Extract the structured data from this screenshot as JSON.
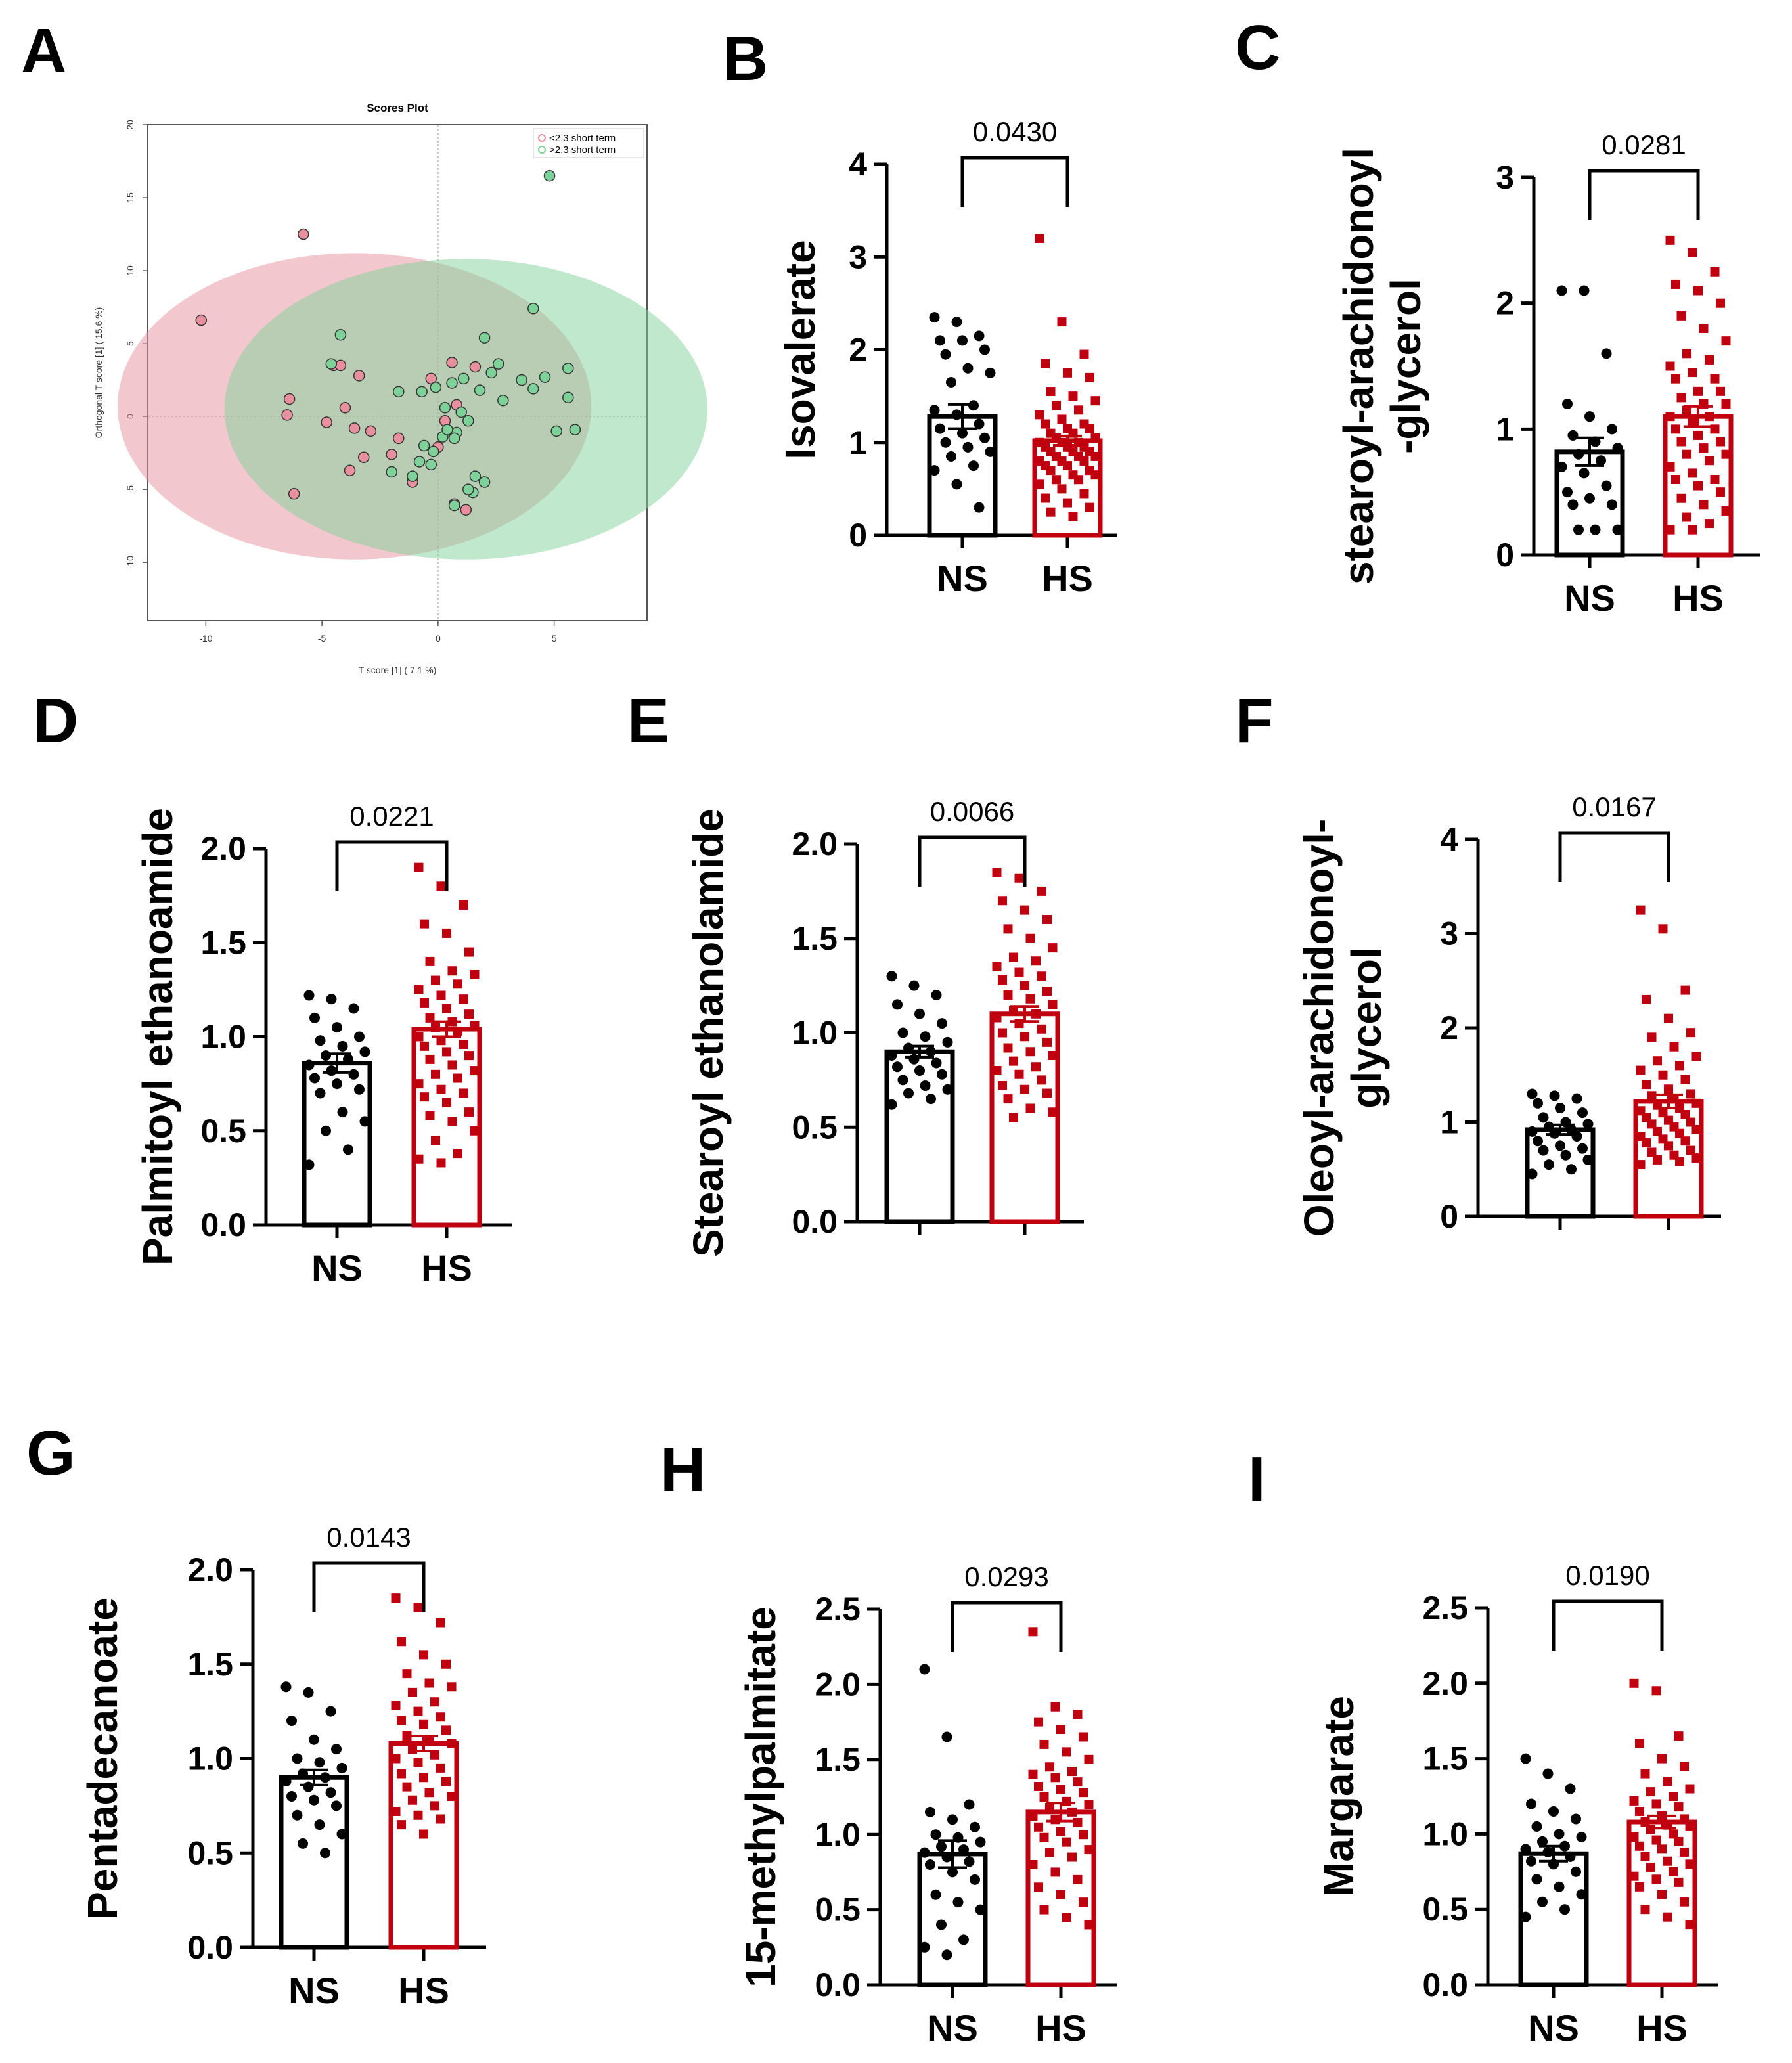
{
  "chart_data": [
    {
      "id": "A",
      "type": "scatter",
      "panel_label": "A",
      "title": "Scores Plot",
      "xlabel": "T score [1] ( 7.1 %)",
      "ylabel": "Orthogonal T score [1] ( 15.6 %)",
      "xlim": [
        -12.5,
        9
      ],
      "ylim": [
        -14,
        20
      ],
      "xticks": [
        -10,
        -5,
        0,
        5
      ],
      "xticklabels": [
        "-10",
        "-5",
        "0",
        "5"
      ],
      "yticks": [
        -10,
        -5,
        0,
        5,
        10,
        15,
        20
      ],
      "yticklabels": [
        "-10",
        "-5",
        "0",
        "5",
        "10",
        "15",
        "20"
      ],
      "legend": [
        "<2.3 short term",
        ">2.3 short term"
      ],
      "legend_position": "top-right",
      "colors": [
        "#e8909e",
        "#7fd19a"
      ],
      "ellipses": [
        {
          "name": "<2.3 short term",
          "cx": -3.6,
          "cy": 0.7,
          "rx": 10.2,
          "ry": 10.5
        },
        {
          "name": ">2.3 short term",
          "cx": 1.2,
          "cy": 0.5,
          "rx": 10.4,
          "ry": 10.3
        }
      ],
      "series": [
        {
          "name": "<2.3 short term",
          "x": [
            -5.8,
            -10.2,
            -6.4,
            -6.5,
            -6.2,
            -4.5,
            -4.2,
            -4.8,
            -4.0,
            -3.6,
            -3.4,
            -3.8,
            -2.9,
            -3.2,
            -2.0,
            -1.1,
            -1.7,
            0.6,
            0.3,
            0.0,
            0.8,
            -0.3,
            1.6,
            0.7,
            1.2
          ],
          "y": [
            12.5,
            6.6,
            1.2,
            0.1,
            -5.3,
            3.5,
            3.5,
            -0.4,
            0.6,
            -0.8,
            2.8,
            -3.7,
            -1.0,
            -2.8,
            -2.6,
            -4.5,
            -1.5,
            3.7,
            -0.3,
            -2.1,
            0.8,
            2.6,
            3.4,
            -6.0,
            -6.4
          ]
        },
        {
          "name": ">2.3 short term",
          "x": [
            4.8,
            4.1,
            2.0,
            2.6,
            5.6,
            4.6,
            3.6,
            4.1,
            5.6,
            5.1,
            5.9,
            -4.2,
            -4.6,
            -1.7,
            -0.7,
            -0.1,
            0.6,
            1.1,
            1.8,
            2.3,
            2.8,
            0.3,
            1.0,
            1.3,
            0.8,
            0.2,
            0.4,
            0.7,
            -0.2,
            -0.6,
            -0.8,
            -2.0,
            -1.1,
            -0.3,
            1.6,
            2.0,
            1.5,
            0.7,
            1.3
          ],
          "y": [
            16.5,
            7.4,
            5.4,
            3.6,
            3.3,
            2.7,
            2.5,
            1.9,
            1.3,
            -1.0,
            -0.9,
            5.6,
            3.6,
            1.7,
            1.7,
            2.0,
            2.3,
            2.6,
            1.8,
            3.0,
            1.1,
            0.6,
            0.3,
            -0.3,
            -1.1,
            -1.4,
            -0.9,
            -1.5,
            -2.4,
            -2.0,
            -3.1,
            -3.8,
            -4.1,
            -3.3,
            -4.1,
            -4.5,
            -5.2,
            -6.1,
            -5.0
          ]
        }
      ]
    },
    {
      "id": "B",
      "type": "bar",
      "panel_label": "B",
      "ylabel": "Isovalerate",
      "categories": [
        "NS",
        "HS"
      ],
      "means": [
        1.28,
        1.02
      ],
      "sem": [
        0.13,
        0.05
      ],
      "ylim": [
        0,
        4
      ],
      "yticks": [
        0,
        1,
        2,
        3,
        4
      ],
      "yticklabels": [
        "0",
        "1",
        "2",
        "3",
        "4"
      ],
      "pvalue": "0.0430",
      "points": [
        [
          2.35,
          2.3,
          2.15,
          2.1,
          2.1,
          2.0,
          1.95,
          1.8,
          1.75,
          1.65,
          1.4,
          1.35,
          1.3,
          1.2,
          1.15,
          1.1,
          1.05,
          1.0,
          0.95,
          0.9,
          0.85,
          0.75,
          0.7,
          0.55,
          0.3
        ],
        [
          3.2,
          2.3,
          1.95,
          1.85,
          1.75,
          1.7,
          1.55,
          1.5,
          1.45,
          1.4,
          1.35,
          1.3,
          1.25,
          1.2,
          1.2,
          1.15,
          1.15,
          1.1,
          1.1,
          1.05,
          1.05,
          1.0,
          1.0,
          1.0,
          0.95,
          0.95,
          0.95,
          0.9,
          0.9,
          0.9,
          0.85,
          0.85,
          0.85,
          0.8,
          0.8,
          0.8,
          0.75,
          0.75,
          0.7,
          0.7,
          0.65,
          0.65,
          0.6,
          0.6,
          0.55,
          0.5,
          0.45,
          0.4,
          0.35,
          0.3,
          0.25,
          0.2
        ]
      ]
    },
    {
      "id": "C",
      "type": "bar",
      "panel_label": "C",
      "ylabel": "stearoyl-arachidonoyl -glycerol",
      "ylabel_lines": [
        "stearoyl-arachidonoyl",
        "-glycerol"
      ],
      "categories": [
        "NS",
        "HS"
      ],
      "means": [
        0.82,
        1.1
      ],
      "sem": [
        0.11,
        0.08
      ],
      "ylim": [
        0,
        3
      ],
      "yticks": [
        0,
        1,
        2,
        3
      ],
      "yticklabels": [
        "0",
        "1",
        "2",
        "3"
      ],
      "pvalue": "0.0281",
      "points": [
        [
          2.1,
          2.1,
          1.6,
          1.2,
          1.1,
          1.0,
          0.95,
          0.9,
          0.85,
          0.8,
          0.75,
          0.7,
          0.65,
          0.55,
          0.5,
          0.45,
          0.4,
          0.4,
          0.2,
          0.2,
          0.2
        ],
        [
          2.5,
          2.4,
          2.25,
          2.15,
          2.1,
          2.0,
          1.9,
          1.8,
          1.7,
          1.6,
          1.55,
          1.5,
          1.45,
          1.4,
          1.4,
          1.3,
          1.3,
          1.25,
          1.2,
          1.2,
          1.15,
          1.1,
          1.1,
          1.05,
          1.0,
          1.0,
          0.95,
          0.9,
          0.9,
          0.85,
          0.8,
          0.8,
          0.75,
          0.7,
          0.65,
          0.6,
          0.6,
          0.55,
          0.5,
          0.45,
          0.4,
          0.35,
          0.3,
          0.25,
          0.2,
          0.2
        ]
      ]
    },
    {
      "id": "D",
      "type": "bar",
      "panel_label": "D",
      "ylabel": "Palmitoyl ethanoamide",
      "categories": [
        "NS",
        "HS"
      ],
      "means": [
        0.86,
        1.04
      ],
      "sem": [
        0.05,
        0.04
      ],
      "ylim": [
        0,
        2.0
      ],
      "yticks": [
        0,
        0.5,
        1.0,
        1.5,
        2.0
      ],
      "yticklabels": [
        "0.0",
        "0.5",
        "1.0",
        "1.5",
        "2.0"
      ],
      "pvalue": "0.0221",
      "points": [
        [
          1.22,
          1.2,
          1.15,
          1.1,
          1.05,
          1.0,
          0.98,
          0.95,
          0.92,
          0.9,
          0.88,
          0.85,
          0.82,
          0.8,
          0.78,
          0.75,
          0.72,
          0.7,
          0.6,
          0.55,
          0.5,
          0.4,
          0.32
        ],
        [
          1.9,
          1.8,
          1.7,
          1.6,
          1.55,
          1.45,
          1.4,
          1.35,
          1.33,
          1.3,
          1.28,
          1.25,
          1.22,
          1.2,
          1.18,
          1.15,
          1.12,
          1.1,
          1.08,
          1.06,
          1.05,
          1.03,
          1.0,
          0.98,
          0.96,
          0.95,
          0.92,
          0.9,
          0.88,
          0.85,
          0.82,
          0.8,
          0.78,
          0.75,
          0.72,
          0.7,
          0.68,
          0.65,
          0.6,
          0.58,
          0.55,
          0.5,
          0.45,
          0.38,
          0.35,
          0.33
        ]
      ]
    },
    {
      "id": "E",
      "type": "bar",
      "panel_label": "E",
      "ylabel": "Stearoyl ethanolamide",
      "categories": [
        "",
        ""
      ],
      "means": [
        0.9,
        1.1
      ],
      "sem": [
        0.03,
        0.04
      ],
      "ylim": [
        0,
        2.0
      ],
      "yticks": [
        0,
        0.5,
        1.0,
        1.5,
        2.0
      ],
      "yticklabels": [
        "0.0",
        "0.5",
        "1.0",
        "1.5",
        "2.0"
      ],
      "pvalue": "0.0066",
      "points": [
        [
          1.3,
          1.25,
          1.2,
          1.15,
          1.1,
          1.05,
          1.0,
          0.98,
          0.95,
          0.92,
          0.9,
          0.88,
          0.86,
          0.84,
          0.82,
          0.8,
          0.78,
          0.75,
          0.72,
          0.7,
          0.68,
          0.65,
          0.62
        ],
        [
          1.85,
          1.82,
          1.75,
          1.7,
          1.65,
          1.6,
          1.55,
          1.5,
          1.45,
          1.4,
          1.38,
          1.35,
          1.32,
          1.3,
          1.28,
          1.25,
          1.22,
          1.2,
          1.18,
          1.15,
          1.12,
          1.1,
          1.08,
          1.05,
          1.02,
          1.0,
          0.98,
          0.95,
          0.92,
          0.9,
          0.88,
          0.85,
          0.82,
          0.8,
          0.78,
          0.75,
          0.72,
          0.7,
          0.68,
          0.65,
          0.6,
          0.58,
          0.55
        ]
      ]
    },
    {
      "id": "F",
      "type": "bar",
      "panel_label": "F",
      "ylabel": "Oleoyl-arachidonoyl- glycerol",
      "ylabel_lines": [
        "Oleoyl-arachidonoyl-",
        "glycerol"
      ],
      "categories": [
        "",
        ""
      ],
      "means": [
        0.92,
        1.22
      ],
      "sem": [
        0.05,
        0.07
      ],
      "ylim": [
        0,
        4
      ],
      "yticks": [
        0,
        1,
        2,
        3,
        4
      ],
      "yticklabels": [
        "0",
        "1",
        "2",
        "3",
        "4"
      ],
      "pvalue": "0.0167",
      "points": [
        [
          1.3,
          1.28,
          1.25,
          1.2,
          1.15,
          1.1,
          1.05,
          1.0,
          0.98,
          0.95,
          0.92,
          0.9,
          0.88,
          0.85,
          0.8,
          0.75,
          0.72,
          0.7,
          0.65,
          0.6,
          0.55,
          0.5,
          0.45
        ],
        [
          3.25,
          3.05,
          2.4,
          2.3,
          2.1,
          1.95,
          1.9,
          1.8,
          1.7,
          1.65,
          1.6,
          1.55,
          1.5,
          1.45,
          1.4,
          1.35,
          1.3,
          1.28,
          1.25,
          1.2,
          1.18,
          1.15,
          1.12,
          1.1,
          1.08,
          1.05,
          1.02,
          1.0,
          0.98,
          0.95,
          0.92,
          0.9,
          0.88,
          0.85,
          0.82,
          0.8,
          0.78,
          0.75,
          0.7,
          0.68,
          0.65,
          0.62,
          0.6,
          0.58,
          0.55
        ]
      ]
    },
    {
      "id": "G",
      "type": "bar",
      "panel_label": "G",
      "ylabel": "Pentadecanoate",
      "categories": [
        "NS",
        "HS"
      ],
      "means": [
        0.9,
        1.08
      ],
      "sem": [
        0.04,
        0.04
      ],
      "ylim": [
        0,
        2.0
      ],
      "yticks": [
        0,
        0.5,
        1.0,
        1.5,
        2.0
      ],
      "yticklabels": [
        "0.0",
        "0.5",
        "1.0",
        "1.5",
        "2.0"
      ],
      "pvalue": "0.0143",
      "points": [
        [
          1.38,
          1.35,
          1.25,
          1.2,
          1.1,
          1.05,
          1.0,
          0.98,
          0.95,
          0.92,
          0.9,
          0.88,
          0.85,
          0.82,
          0.8,
          0.78,
          0.75,
          0.7,
          0.65,
          0.6,
          0.55,
          0.5
        ],
        [
          1.85,
          1.8,
          1.72,
          1.62,
          1.55,
          1.5,
          1.45,
          1.4,
          1.38,
          1.35,
          1.3,
          1.28,
          1.25,
          1.22,
          1.2,
          1.18,
          1.15,
          1.12,
          1.1,
          1.08,
          1.05,
          1.02,
          1.0,
          0.98,
          0.95,
          0.92,
          0.9,
          0.88,
          0.85,
          0.82,
          0.8,
          0.78,
          0.75,
          0.72,
          0.7,
          0.68,
          0.65,
          0.6
        ]
      ]
    },
    {
      "id": "H",
      "type": "bar",
      "panel_label": "H",
      "ylabel": "15-methylpalmitate",
      "categories": [
        "NS",
        "HS"
      ],
      "means": [
        0.87,
        1.15
      ],
      "sem": [
        0.09,
        0.06
      ],
      "ylim": [
        0,
        2.5
      ],
      "yticks": [
        0,
        0.5,
        1.0,
        1.5,
        2.0,
        2.5
      ],
      "yticklabels": [
        "0.0",
        "0.5",
        "1.0",
        "1.5",
        "2.0",
        "2.5"
      ],
      "pvalue": "0.0293",
      "points": [
        [
          2.1,
          1.65,
          1.2,
          1.15,
          1.1,
          1.05,
          1.0,
          0.98,
          0.95,
          0.92,
          0.9,
          0.88,
          0.85,
          0.82,
          0.8,
          0.75,
          0.7,
          0.6,
          0.55,
          0.5,
          0.4,
          0.3,
          0.25,
          0.2
        ],
        [
          2.35,
          1.85,
          1.8,
          1.75,
          1.7,
          1.65,
          1.6,
          1.55,
          1.5,
          1.45,
          1.42,
          1.4,
          1.38,
          1.35,
          1.32,
          1.3,
          1.28,
          1.25,
          1.22,
          1.2,
          1.18,
          1.15,
          1.12,
          1.1,
          1.08,
          1.05,
          1.02,
          1.0,
          0.98,
          0.95,
          0.9,
          0.88,
          0.85,
          0.8,
          0.75,
          0.7,
          0.65,
          0.6,
          0.55,
          0.5,
          0.45,
          0.4
        ]
      ]
    },
    {
      "id": "I",
      "type": "bar",
      "panel_label": "I",
      "ylabel": "Margarate",
      "categories": [
        "NS",
        "HS"
      ],
      "means": [
        0.87,
        1.08
      ],
      "sem": [
        0.05,
        0.04
      ],
      "ylim": [
        0,
        2.5
      ],
      "yticks": [
        0,
        0.5,
        1.0,
        1.5,
        2.0,
        2.5
      ],
      "yticklabels": [
        "0.0",
        "0.5",
        "1.0",
        "1.5",
        "2.0",
        "2.5"
      ],
      "pvalue": "0.0190",
      "points": [
        [
          1.5,
          1.4,
          1.3,
          1.2,
          1.15,
          1.1,
          1.05,
          1.0,
          0.98,
          0.95,
          0.92,
          0.9,
          0.88,
          0.85,
          0.82,
          0.8,
          0.75,
          0.7,
          0.65,
          0.6,
          0.55,
          0.5,
          0.45
        ],
        [
          2.0,
          1.95,
          1.65,
          1.6,
          1.5,
          1.45,
          1.4,
          1.35,
          1.3,
          1.28,
          1.25,
          1.22,
          1.2,
          1.18,
          1.15,
          1.12,
          1.1,
          1.08,
          1.06,
          1.05,
          1.03,
          1.0,
          0.98,
          0.96,
          0.95,
          0.92,
          0.9,
          0.88,
          0.85,
          0.82,
          0.8,
          0.78,
          0.75,
          0.72,
          0.7,
          0.68,
          0.65,
          0.6,
          0.55,
          0.5,
          0.45,
          0.4
        ]
      ]
    }
  ]
}
